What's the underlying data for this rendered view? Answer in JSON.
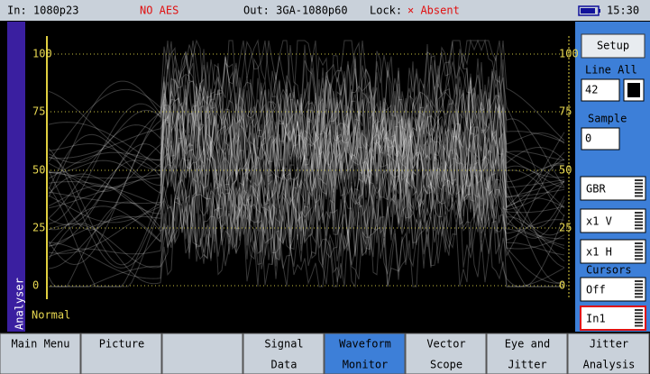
{
  "status_bar": {
    "input": "In: 1080p23",
    "aes": "NO AES",
    "output": "Out: 3GA-1080p60",
    "lock_label": "Lock:",
    "lock_status": "× Absent",
    "time": "15:30"
  },
  "analyser": {
    "label": "Analyser",
    "mode": "Normal",
    "scale_left": [
      "100",
      "75",
      "50",
      "25",
      "0"
    ],
    "scale_right": [
      "100",
      "75",
      "50",
      "25",
      "0"
    ]
  },
  "side_panel": {
    "setup": "Setup",
    "line_label": "Line All",
    "line_value": "42",
    "sample_label": "Sample",
    "sample_value": "0",
    "colour": "GBR",
    "vertical": "x1 V",
    "horizontal": "x1 H",
    "cursors_label": "Cursors",
    "cursors_value": "Off",
    "input": "In1"
  },
  "menu": [
    {
      "lines": [
        "Main Menu"
      ]
    },
    {
      "lines": [
        "Picture"
      ]
    },
    {
      "lines": []
    },
    {
      "lines": [
        "Signal",
        "Data"
      ]
    },
    {
      "lines": [
        "Waveform",
        "Monitor"
      ],
      "active": true
    },
    {
      "lines": [
        "Vector",
        "Scope"
      ]
    },
    {
      "lines": [
        "Eye and",
        "Jitter"
      ]
    },
    {
      "lines": [
        "Jitter",
        "Analysis"
      ]
    }
  ]
}
